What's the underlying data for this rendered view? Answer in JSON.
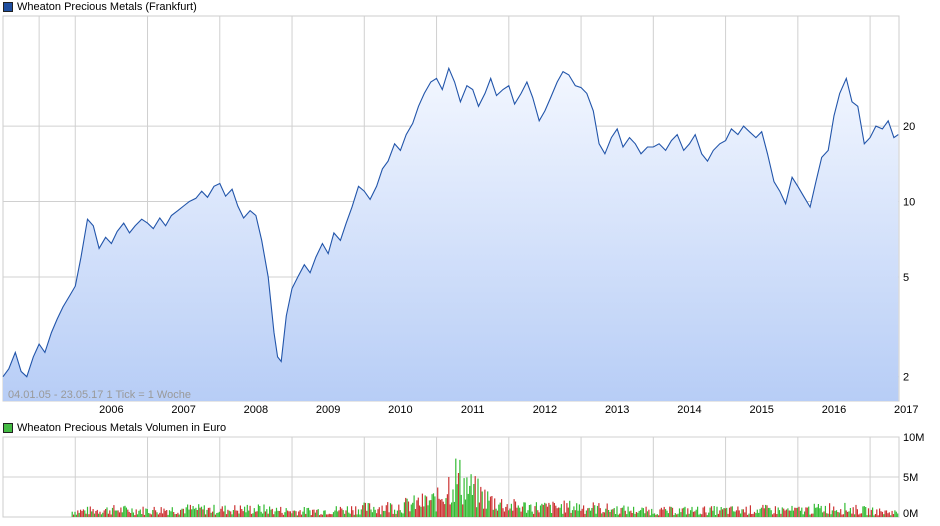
{
  "colors": {
    "price_line": "#2255aa",
    "price_fill_top": "#f3f7ff",
    "price_fill_bottom": "#b7cdf6",
    "grid": "#d0d0d0",
    "volume_up": "#33bb33",
    "volume_down": "#cc3333"
  },
  "chart_data": [
    {
      "type": "area",
      "title": "Wheaton Precious Metals (Frankfurt)",
      "legend_position": "top-left",
      "y_scale": "log",
      "grid": true,
      "date_range_note": "04.01.05 - 23.05.17   1 Tick = 1 Woche",
      "x_tick_labels": [
        "2006",
        "2007",
        "2008",
        "2009",
        "2010",
        "2011",
        "2012",
        "2013",
        "2014",
        "2015",
        "2016",
        "2017"
      ],
      "y_tick_labels": [
        "2",
        "5",
        "10",
        "20"
      ],
      "y_ticks": [
        2,
        5,
        10,
        20
      ],
      "xlim": [
        2005.0,
        2017.4
      ],
      "ylim": [
        1.6,
        55
      ],
      "x": [
        2005.0,
        2005.08,
        2005.17,
        2005.25,
        2005.33,
        2005.42,
        2005.5,
        2005.58,
        2005.67,
        2005.75,
        2005.83,
        2005.92,
        2006.0,
        2006.08,
        2006.17,
        2006.25,
        2006.33,
        2006.42,
        2006.5,
        2006.58,
        2006.67,
        2006.75,
        2006.83,
        2006.92,
        2007.0,
        2007.08,
        2007.17,
        2007.25,
        2007.33,
        2007.42,
        2007.5,
        2007.58,
        2007.67,
        2007.75,
        2007.83,
        2007.92,
        2008.0,
        2008.08,
        2008.17,
        2008.25,
        2008.33,
        2008.42,
        2008.5,
        2008.58,
        2008.67,
        2008.75,
        2008.8,
        2008.85,
        2008.92,
        2009.0,
        2009.08,
        2009.17,
        2009.25,
        2009.33,
        2009.42,
        2009.5,
        2009.58,
        2009.67,
        2009.75,
        2009.83,
        2009.92,
        2010.0,
        2010.08,
        2010.17,
        2010.25,
        2010.33,
        2010.42,
        2010.5,
        2010.58,
        2010.67,
        2010.75,
        2010.83,
        2010.92,
        2011.0,
        2011.08,
        2011.17,
        2011.25,
        2011.33,
        2011.42,
        2011.5,
        2011.58,
        2011.67,
        2011.75,
        2011.83,
        2011.92,
        2012.0,
        2012.08,
        2012.17,
        2012.25,
        2012.33,
        2012.42,
        2012.5,
        2012.58,
        2012.67,
        2012.75,
        2012.83,
        2012.92,
        2013.0,
        2013.08,
        2013.17,
        2013.25,
        2013.33,
        2013.42,
        2013.5,
        2013.58,
        2013.67,
        2013.75,
        2013.83,
        2013.92,
        2014.0,
        2014.08,
        2014.17,
        2014.25,
        2014.33,
        2014.42,
        2014.5,
        2014.58,
        2014.67,
        2014.75,
        2014.83,
        2014.92,
        2015.0,
        2015.08,
        2015.17,
        2015.25,
        2015.33,
        2015.42,
        2015.5,
        2015.58,
        2015.67,
        2015.75,
        2015.83,
        2015.92,
        2016.0,
        2016.08,
        2016.17,
        2016.25,
        2016.33,
        2016.42,
        2016.5,
        2016.58,
        2016.67,
        2016.75,
        2016.83,
        2016.92,
        2017.0,
        2017.08,
        2017.17,
        2017.25,
        2017.33,
        2017.39
      ],
      "series": [
        {
          "values": [
            2.0,
            2.15,
            2.5,
            2.1,
            2.0,
            2.4,
            2.7,
            2.5,
            3.0,
            3.4,
            3.8,
            4.2,
            4.6,
            6.0,
            8.5,
            8.0,
            6.5,
            7.2,
            6.8,
            7.6,
            8.2,
            7.5,
            8.0,
            8.5,
            8.2,
            7.8,
            8.6,
            8.0,
            8.8,
            9.2,
            9.6,
            10.0,
            10.3,
            11.0,
            10.4,
            11.5,
            11.8,
            10.5,
            11.2,
            9.6,
            8.6,
            9.2,
            8.8,
            7.0,
            5.0,
            3.0,
            2.4,
            2.3,
            3.5,
            4.5,
            5.0,
            5.6,
            5.2,
            6.0,
            6.8,
            6.2,
            7.5,
            7.0,
            8.2,
            9.5,
            11.5,
            11.0,
            10.2,
            11.5,
            13.5,
            14.5,
            17.0,
            16.0,
            18.5,
            20.5,
            24.0,
            27.0,
            30.0,
            31.0,
            28.0,
            34.0,
            30.0,
            25.0,
            29.0,
            28.0,
            24.0,
            27.0,
            31.0,
            26.5,
            28.0,
            29.0,
            24.5,
            27.0,
            30.0,
            26.0,
            21.0,
            23.0,
            26.0,
            30.0,
            33.0,
            32.0,
            29.0,
            28.5,
            27.0,
            23.0,
            17.0,
            15.5,
            18.0,
            19.5,
            16.5,
            18.0,
            17.0,
            15.5,
            16.5,
            16.5,
            17.0,
            16.0,
            17.5,
            18.5,
            16.0,
            17.0,
            18.5,
            15.5,
            14.5,
            16.0,
            17.0,
            17.5,
            19.5,
            18.5,
            20.0,
            19.0,
            18.0,
            19.0,
            15.5,
            12.0,
            11.0,
            9.8,
            12.5,
            11.5,
            10.5,
            9.5,
            12.0,
            15.0,
            16.0,
            22.0,
            27.0,
            31.0,
            25.0,
            24.0,
            17.0,
            18.0,
            20.0,
            19.5,
            21.0,
            18.0,
            18.5
          ]
        }
      ]
    },
    {
      "type": "bar",
      "title": "Wheaton Precious Metals Volumen in Euro",
      "legend_position": "top-left",
      "grid": true,
      "y_tick_labels": [
        "10M",
        "5M",
        "0M"
      ],
      "ylim": [
        0,
        10
      ],
      "x_tick_labels": [],
      "x": [
        2005.5,
        2006.0,
        2006.5,
        2007.0,
        2007.5,
        2008.0,
        2008.5,
        2009.0,
        2009.5,
        2010.0,
        2010.5,
        2011.0,
        2011.25,
        2011.5,
        2011.75,
        2012.0,
        2012.5,
        2013.0,
        2013.5,
        2014.0,
        2014.5,
        2015.0,
        2015.5,
        2016.0,
        2016.5,
        2017.0,
        2017.39
      ],
      "series": [
        {
          "values": [
            0.2,
            0.8,
            1.0,
            0.9,
            1.1,
            1.0,
            1.1,
            0.8,
            0.9,
            1.2,
            1.5,
            2.3,
            5.5,
            3.5,
            2.2,
            1.5,
            1.3,
            1.4,
            1.0,
            0.8,
            0.9,
            0.9,
            1.0,
            0.9,
            1.3,
            0.8,
            0.6
          ]
        }
      ]
    }
  ]
}
